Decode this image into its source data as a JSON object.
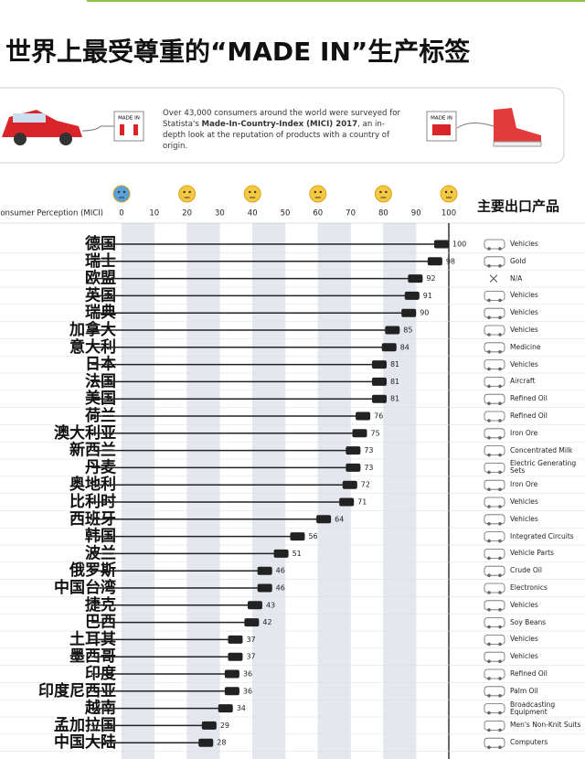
{
  "header": {
    "title": "世界上最受尊重的“MADE IN”生产标签"
  },
  "intro": {
    "text": [
      "Over 43,000 consumers around the world were surveyed for Statista's ",
      "Made-In-Country-Index (MICI) 2017",
      ", an in-depth look at the reputation of products with a country of origin."
    ],
    "badge_left": "MADE IN",
    "badge_right": "MADE IN"
  },
  "chart_data": {
    "type": "bar",
    "xlabel": "Consumer Perception (MICI)",
    "products_header": "主要出口产品",
    "categories": [
      "德国",
      "瑞士",
      "欧盟",
      "英国",
      "瑞典",
      "加拿大",
      "意大利",
      "日本",
      "法国",
      "美国",
      "荷兰",
      "澳大利亚",
      "新西兰",
      "丹麦",
      "奥地利",
      "比利时",
      "西班牙",
      "韩国",
      "波兰",
      "俄罗斯",
      "中国台湾",
      "捷克",
      "巴西",
      "土耳其",
      "墨西哥",
      "印度",
      "印度尼西亚",
      "越南",
      "孟加拉国",
      "中国大陆"
    ],
    "values": [
      100,
      98,
      92,
      91,
      90,
      85,
      84,
      81,
      81,
      81,
      76,
      75,
      73,
      73,
      72,
      71,
      64,
      56,
      51,
      46,
      46,
      43,
      42,
      37,
      37,
      36,
      36,
      34,
      29,
      28
    ],
    "products": [
      "Vehicles",
      "Gold",
      "N/A",
      "Vehicles",
      "Vehicles",
      "Vehicles",
      "Medicine",
      "Vehicles",
      "Aircraft",
      "Refined Oil",
      "Refined Oil",
      "Iron Ore",
      "Concentrated Milk",
      "Electric Generating Sets",
      "Iron Ore",
      "Vehicles",
      "Vehicles",
      "Integrated Circuits",
      "Vehicle Parts",
      "Crude Oil",
      "Electronics",
      "Vehicles",
      "Soy Beans",
      "Vehicles",
      "Vehicles",
      "Refined Oil",
      "Palm Oil",
      "Broadcasting Equipment",
      "Men's Non-Knit Suits",
      "Computers"
    ],
    "color": "#222222",
    "xlim": [
      0,
      100
    ],
    "xticks": [
      0,
      10,
      20,
      30,
      40,
      50,
      60,
      70,
      80,
      90,
      100
    ],
    "grid": true
  }
}
